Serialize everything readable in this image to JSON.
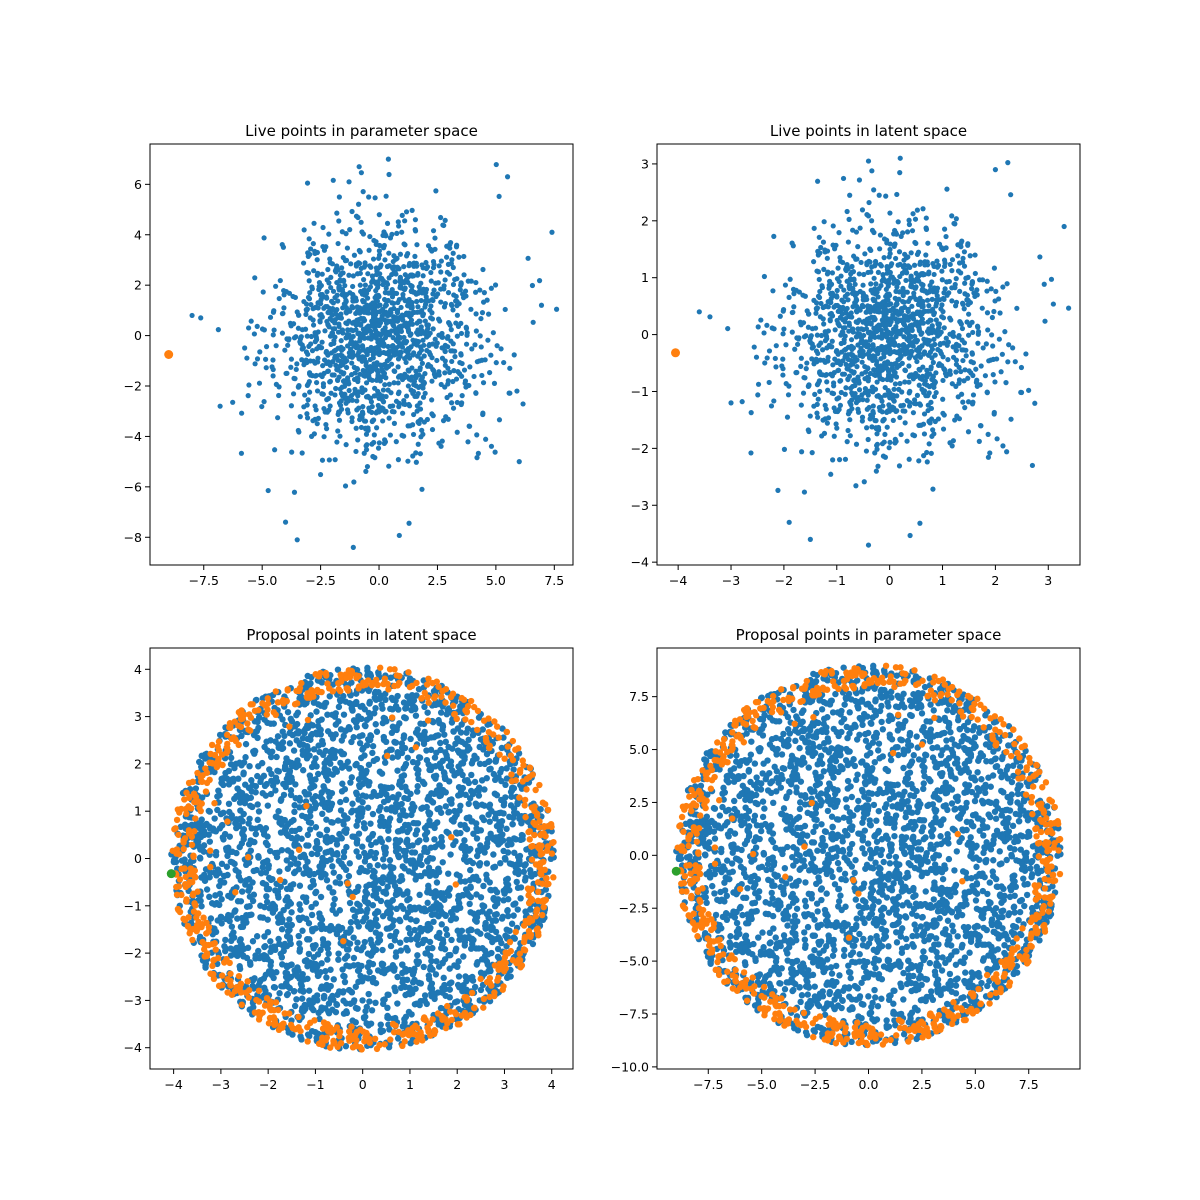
{
  "figure": {
    "background": "#ffffff"
  },
  "colors": {
    "blue": "#1f77b4",
    "orange": "#ff7f0e",
    "green": "#2ca02c"
  },
  "chart_data": [
    {
      "type": "scatter",
      "title": "Live points in parameter space",
      "xlabel": "",
      "ylabel": "",
      "xlim": [
        -9.8,
        8.3
      ],
      "ylim": [
        -9.1,
        7.6
      ],
      "xticks": [
        -7.5,
        -5.0,
        -2.5,
        0.0,
        2.5,
        5.0,
        7.5
      ],
      "xtick_labels": [
        "−7.5",
        "−5.0",
        "−2.5",
        "0.0",
        "2.5",
        "5.0",
        "7.5"
      ],
      "yticks": [
        -8,
        -6,
        -4,
        -2,
        0,
        2,
        4,
        6
      ],
      "ytick_labels": [
        "−8",
        "−6",
        "−4",
        "−2",
        "0",
        "2",
        "4",
        "6"
      ],
      "grid": false,
      "series": [
        {
          "distribution": "gaussian",
          "n": 1500,
          "center": [
            0,
            0
          ],
          "sigma": [
            2.2,
            2.2
          ],
          "clip_radius": 0,
          "color": "#1f77b4",
          "marker_size": 2.6,
          "seed": 11
        },
        {
          "points": [
            [
              -0.85,
              6.7
            ],
            [
              0.4,
              7.0
            ],
            [
              7.4,
              4.1
            ],
            [
              -1.1,
              -8.4
            ],
            [
              -3.5,
              -8.1
            ],
            [
              -4.0,
              -7.4
            ],
            [
              6.0,
              -5.0
            ],
            [
              -6.8,
              -2.8
            ],
            [
              -8.0,
              0.8
            ],
            [
              5.5,
              6.3
            ]
          ],
          "color": "#1f77b4",
          "marker_size": 2.6
        },
        {
          "points": [
            [
              -9.0,
              -0.75
            ]
          ],
          "color": "#ff7f0e",
          "marker_size": 4.5
        }
      ]
    },
    {
      "type": "scatter",
      "title": "Live points in latent space",
      "xlabel": "",
      "ylabel": "",
      "xlim": [
        -4.4,
        3.6
      ],
      "ylim": [
        -4.05,
        3.35
      ],
      "xticks": [
        -4,
        -3,
        -2,
        -1,
        0,
        1,
        2,
        3
      ],
      "xtick_labels": [
        "−4",
        "−3",
        "−2",
        "−1",
        "0",
        "1",
        "2",
        "3"
      ],
      "yticks": [
        -4,
        -3,
        -2,
        -1,
        0,
        1,
        2,
        3
      ],
      "ytick_labels": [
        "−4",
        "−3",
        "−2",
        "−1",
        "0",
        "1",
        "2",
        "3"
      ],
      "grid": false,
      "series": [
        {
          "distribution": "gaussian",
          "n": 1500,
          "center": [
            0,
            0
          ],
          "sigma": [
            0.98,
            0.98
          ],
          "clip_radius": 0,
          "color": "#1f77b4",
          "marker_size": 2.6,
          "seed": 11
        },
        {
          "points": [
            [
              -0.4,
              3.05
            ],
            [
              0.2,
              3.1
            ],
            [
              3.3,
              1.9
            ],
            [
              -0.4,
              -3.7
            ],
            [
              -1.5,
              -3.6
            ],
            [
              -1.9,
              -3.3
            ],
            [
              2.7,
              -2.3
            ],
            [
              -3.0,
              -1.2
            ],
            [
              -3.6,
              0.4
            ],
            [
              2.0,
              2.9
            ]
          ],
          "color": "#1f77b4",
          "marker_size": 2.6
        },
        {
          "points": [
            [
              -4.05,
              -0.32
            ]
          ],
          "color": "#ff7f0e",
          "marker_size": 4.5
        }
      ]
    },
    {
      "type": "scatter",
      "title": "Proposal points in latent space",
      "xlabel": "",
      "ylabel": "",
      "xlim": [
        -4.5,
        4.45
      ],
      "ylim": [
        -4.45,
        4.45
      ],
      "xticks": [
        -4,
        -3,
        -2,
        -1,
        0,
        1,
        2,
        3,
        4
      ],
      "xtick_labels": [
        "−4",
        "−3",
        "−2",
        "−1",
        "0",
        "1",
        "2",
        "3",
        "4"
      ],
      "yticks": [
        -4,
        -3,
        -2,
        -1,
        0,
        1,
        2,
        3,
        4
      ],
      "ytick_labels": [
        "−4",
        "−3",
        "−2",
        "−1",
        "0",
        "1",
        "2",
        "3",
        "4"
      ],
      "grid": false,
      "series": [
        {
          "distribution": "disk",
          "n": 3000,
          "center": [
            0,
            0
          ],
          "radius": 4.05,
          "color": "#1f77b4",
          "marker_size": 3.2,
          "seed": 23
        },
        {
          "distribution": "ring",
          "n": 650,
          "center": [
            0,
            0
          ],
          "r_inner": 3.55,
          "r_outer": 4.06,
          "color": "#ff7f0e",
          "marker_size": 3.2,
          "seed": 37
        },
        {
          "distribution": "disk",
          "n": 20,
          "center": [
            0,
            0
          ],
          "radius": 3.5,
          "color": "#ff7f0e",
          "marker_size": 3.2,
          "seed": 41
        },
        {
          "points": [
            [
              -4.05,
              -0.32
            ]
          ],
          "color": "#2ca02c",
          "marker_size": 4.5
        }
      ]
    },
    {
      "type": "scatter",
      "title": "Proposal points in parameter space",
      "xlabel": "",
      "ylabel": "",
      "xlim": [
        -9.9,
        9.9
      ],
      "ylim": [
        -10.1,
        9.8
      ],
      "xticks": [
        -7.5,
        -5.0,
        -2.5,
        0.0,
        2.5,
        5.0,
        7.5
      ],
      "xtick_labels": [
        "−7.5",
        "−5.0",
        "−2.5",
        "0.0",
        "2.5",
        "5.0",
        "7.5"
      ],
      "yticks": [
        -10.0,
        -7.5,
        -5.0,
        -2.5,
        0.0,
        2.5,
        5.0,
        7.5
      ],
      "ytick_labels": [
        "−10.0",
        "−7.5",
        "−5.0",
        "−2.5",
        "0.0",
        "2.5",
        "5.0",
        "7.5"
      ],
      "grid": false,
      "series": [
        {
          "distribution": "disk",
          "n": 3000,
          "center": [
            0,
            0
          ],
          "radius": 9.0,
          "color": "#1f77b4",
          "marker_size": 3.2,
          "seed": 23
        },
        {
          "distribution": "ring",
          "n": 650,
          "center": [
            0,
            0
          ],
          "r_inner": 7.9,
          "r_outer": 9.02,
          "color": "#ff7f0e",
          "marker_size": 3.2,
          "seed": 37
        },
        {
          "distribution": "disk",
          "n": 20,
          "center": [
            0,
            0
          ],
          "radius": 7.8,
          "color": "#ff7f0e",
          "marker_size": 3.2,
          "seed": 41
        },
        {
          "points": [
            [
              -9.0,
              -0.75
            ]
          ],
          "color": "#2ca02c",
          "marker_size": 4.5
        }
      ]
    }
  ]
}
